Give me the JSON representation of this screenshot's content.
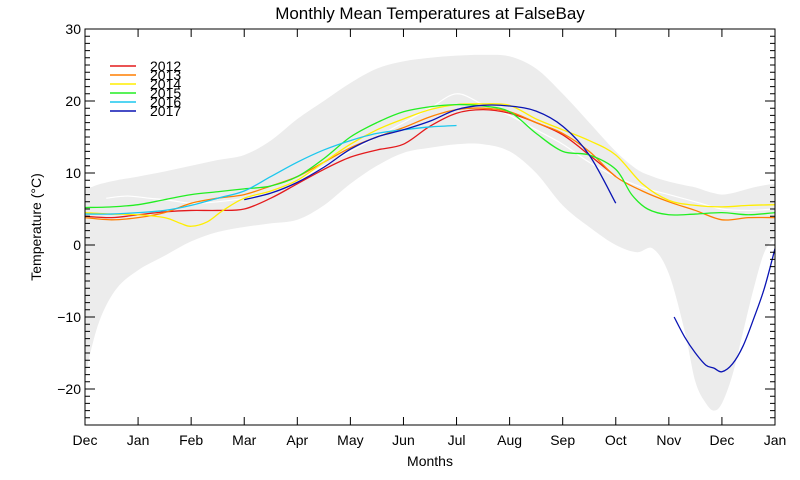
{
  "chart_data": {
    "type": "line",
    "title": "Monthly Mean Temperatures at FalseBay",
    "xlabel": "Months",
    "ylabel": "Temperature (°C)",
    "x_ticks": [
      "Dec",
      "Jan",
      "Feb",
      "Mar",
      "Apr",
      "May",
      "Jun",
      "Jul",
      "Aug",
      "Sep",
      "Oct",
      "Nov",
      "Dec",
      "Jan"
    ],
    "x_range": [
      0,
      13
    ],
    "ylim": [
      -25,
      30
    ],
    "y_ticks": [
      -20,
      -10,
      0,
      10,
      20,
      30
    ],
    "grid": false,
    "legend_position": "top-left",
    "colors": {
      "band": "#ececec",
      "mean_line": "#ffffff",
      "axis": "#000000"
    },
    "climatology_band": {
      "x": [
        0,
        0.1,
        0.3,
        0.6,
        1,
        1.5,
        2,
        2.5,
        3,
        3.5,
        4,
        4.5,
        5,
        5.5,
        6,
        6.5,
        7,
        7.5,
        8,
        8.5,
        9,
        9.5,
        10,
        10.4,
        10.7,
        11,
        11.3,
        11.5,
        11.7,
        11.85,
        12,
        12.2,
        12.4,
        12.6,
        12.8,
        13
      ],
      "upper": [
        8,
        8,
        8.5,
        9,
        9.5,
        10.2,
        11,
        11.8,
        12.5,
        14.5,
        17.5,
        20,
        22.5,
        24.5,
        25.5,
        26,
        26.3,
        26.4,
        26.2,
        24.5,
        21,
        17,
        13,
        10.5,
        9.5,
        8.8,
        8.3,
        8,
        7.5,
        7.2,
        7,
        7.2,
        7.6,
        8,
        8.3,
        8.5
      ],
      "lower": [
        -19,
        -15,
        -10,
        -6,
        -3.5,
        -1.5,
        0.5,
        1.8,
        2.5,
        3,
        3.5,
        5.5,
        8.5,
        11,
        12.8,
        13.5,
        14,
        14,
        13,
        10,
        5.5,
        2.5,
        0,
        -1,
        -0.5,
        -4,
        -12,
        -19,
        -22,
        -23,
        -22,
        -18,
        -12,
        -6,
        -1,
        1
      ]
    },
    "mean_line": {
      "x": [
        0.4,
        0.8,
        1.2,
        1.6,
        2,
        2.5,
        3,
        3.5,
        4,
        4.5,
        5,
        5.5,
        6,
        6.5,
        7,
        7.5,
        8,
        8.5,
        9,
        9.5,
        10,
        10.5,
        11,
        11.5,
        12,
        12.5,
        13
      ],
      "y": [
        6.5,
        6.8,
        6.5,
        6.2,
        5.8,
        6.0,
        6.5,
        7.5,
        9.0,
        11.0,
        13.0,
        15.0,
        17.0,
        19.0,
        21.0,
        19.5,
        18.0,
        16.0,
        14.0,
        11.5,
        9.5,
        8.0,
        7.0,
        6.0,
        5.0,
        4.8,
        5.0
      ]
    },
    "series": [
      {
        "name": "2012",
        "color": "#e41a1c",
        "x": [
          0,
          0.5,
          1,
          1.5,
          2,
          2.5,
          3,
          3.5,
          4,
          4.5,
          5,
          5.5,
          6,
          6.5,
          7,
          7.5,
          8,
          8.5,
          9,
          9.5,
          10
        ],
        "y": [
          4,
          3.8,
          4.2,
          4.6,
          4.8,
          4.8,
          5,
          6.5,
          8.5,
          10.5,
          12.2,
          13.2,
          14,
          16.5,
          18.3,
          18.8,
          18.3,
          17,
          15.3,
          12.5,
          9.5
        ]
      },
      {
        "name": "2013",
        "color": "#ff7f00",
        "x": [
          0,
          0.5,
          1,
          1.5,
          2,
          2.5,
          3,
          3.5,
          4,
          4.5,
          5,
          5.5,
          6,
          6.5,
          7,
          7.5,
          8,
          8.5,
          9,
          9.5,
          10,
          10.5,
          11,
          11.5,
          12,
          12.5,
          13
        ],
        "y": [
          3.8,
          3.5,
          3.8,
          4.5,
          5.8,
          6.5,
          7,
          8.2,
          9.5,
          11.5,
          13.5,
          15,
          16.3,
          17.8,
          18.8,
          19,
          18.5,
          17,
          15.5,
          13,
          9.5,
          7.5,
          6,
          4.8,
          3.5,
          3.8,
          3.8
        ]
      },
      {
        "name": "2014",
        "color": "#ffee00",
        "x": [
          0,
          0.5,
          1,
          1.5,
          1.8,
          2,
          2.3,
          2.6,
          3,
          3.5,
          4,
          4.5,
          5,
          5.5,
          6,
          6.5,
          7,
          7.5,
          8,
          8.5,
          9,
          9.5,
          10,
          10.5,
          11,
          11.5,
          12,
          12.5,
          13
        ],
        "y": [
          4.5,
          4.3,
          4.2,
          3.8,
          3,
          2.6,
          3.2,
          4.8,
          6.5,
          7.5,
          9,
          11.5,
          14,
          16,
          17.5,
          18.8,
          19.5,
          19.6,
          19.4,
          17.5,
          16,
          14.5,
          12.5,
          8.5,
          6.2,
          5.5,
          5.3,
          5.5,
          5.6
        ]
      },
      {
        "name": "2015",
        "color": "#22ee22",
        "x": [
          0,
          0.5,
          1,
          1.5,
          2,
          2.5,
          3,
          3.5,
          4,
          4.5,
          5,
          5.5,
          6,
          6.5,
          7,
          7.5,
          8,
          8.5,
          9,
          9.5,
          10,
          10.3,
          10.6,
          11,
          11.5,
          12,
          12.5,
          13
        ],
        "y": [
          5.2,
          5.3,
          5.6,
          6.3,
          7,
          7.4,
          7.8,
          8.2,
          9.5,
          12,
          15,
          17,
          18.5,
          19.2,
          19.5,
          19.3,
          18.5,
          15.5,
          13,
          12.5,
          10.5,
          7,
          5,
          4.2,
          4.3,
          4.5,
          4.2,
          4.5
        ]
      },
      {
        "name": "2016",
        "color": "#1cc7ee",
        "x": [
          0,
          0.5,
          1,
          1.5,
          2,
          2.5,
          3,
          3.5,
          4,
          4.5,
          5,
          5.5,
          6,
          6.5,
          7
        ],
        "y": [
          4.3,
          4.3,
          4.5,
          4.8,
          5.5,
          6.5,
          7.5,
          9.5,
          11.5,
          13.2,
          14.5,
          15.5,
          16,
          16.4,
          16.6
        ]
      },
      {
        "name": "2017",
        "color": "#0a14b4",
        "x": [
          3,
          3.5,
          4,
          4.5,
          5,
          5.5,
          6,
          6.5,
          7,
          7.5,
          8,
          8.5,
          9,
          9.5,
          10
        ],
        "y": [
          6.3,
          7.2,
          8.7,
          10.8,
          13.3,
          15,
          16,
          17.2,
          18.8,
          19.4,
          19.3,
          18.6,
          16.5,
          12.5,
          5.8
        ]
      },
      {
        "name": "2017",
        "color": "#0a14b4",
        "legend": false,
        "x": [
          11.1,
          11.3,
          11.5,
          11.7,
          11.85,
          12,
          12.2,
          12.4,
          12.6,
          12.8,
          13
        ],
        "y": [
          -10,
          -12.8,
          -15,
          -16.7,
          -17.1,
          -17.6,
          -16.5,
          -14,
          -10.2,
          -6,
          -0.5
        ]
      }
    ]
  }
}
